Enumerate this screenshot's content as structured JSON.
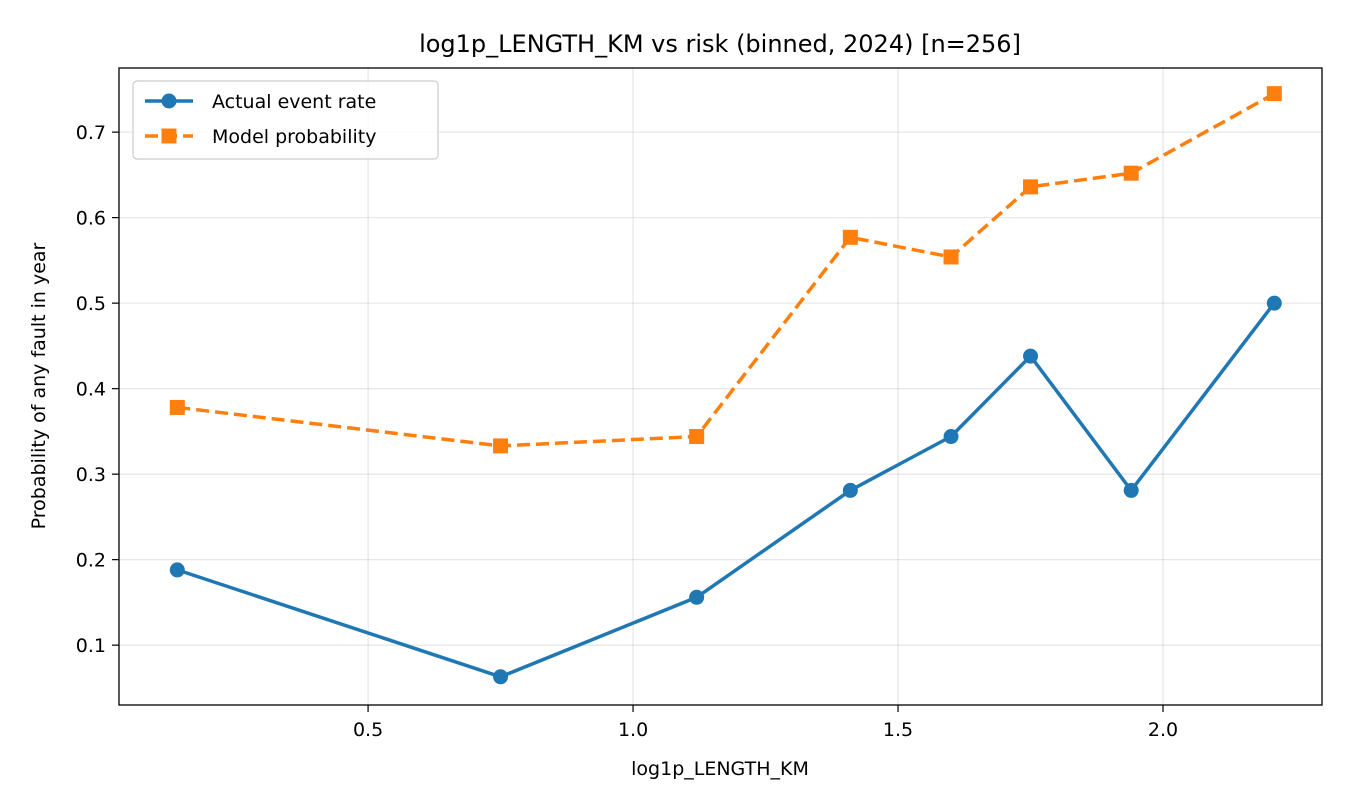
{
  "chart_data": {
    "type": "line",
    "title": "log1p_LENGTH_KM vs risk (binned, 2024)  [n=256]",
    "xlabel": "log1p_LENGTH_KM",
    "ylabel": "Probability of any fault in year",
    "xlim": [
      0.03,
      2.3
    ],
    "ylim": [
      0.03,
      0.775
    ],
    "xticks": [
      0.5,
      1.0,
      1.5,
      2.0
    ],
    "xtick_labels": [
      "0.5",
      "1.0",
      "1.5",
      "2.0"
    ],
    "yticks": [
      0.1,
      0.2,
      0.3,
      0.4,
      0.5,
      0.6,
      0.7
    ],
    "ytick_labels": [
      "0.1",
      "0.2",
      "0.3",
      "0.4",
      "0.5",
      "0.6",
      "0.7"
    ],
    "grid": true,
    "legend_position": "top-left",
    "x": [
      0.14,
      0.75,
      1.12,
      1.41,
      1.6,
      1.75,
      1.94,
      2.21
    ],
    "series": [
      {
        "name": "Actual event rate",
        "values": [
          0.188,
          0.063,
          0.156,
          0.281,
          0.344,
          0.438,
          0.281,
          0.5
        ],
        "color": "#1f77b4",
        "style": "solid",
        "marker": "circle"
      },
      {
        "name": "Model probability",
        "values": [
          0.378,
          0.333,
          0.344,
          0.577,
          0.554,
          0.636,
          0.652,
          0.745
        ],
        "color": "#ff7f0e",
        "style": "dashed",
        "marker": "square"
      }
    ]
  }
}
